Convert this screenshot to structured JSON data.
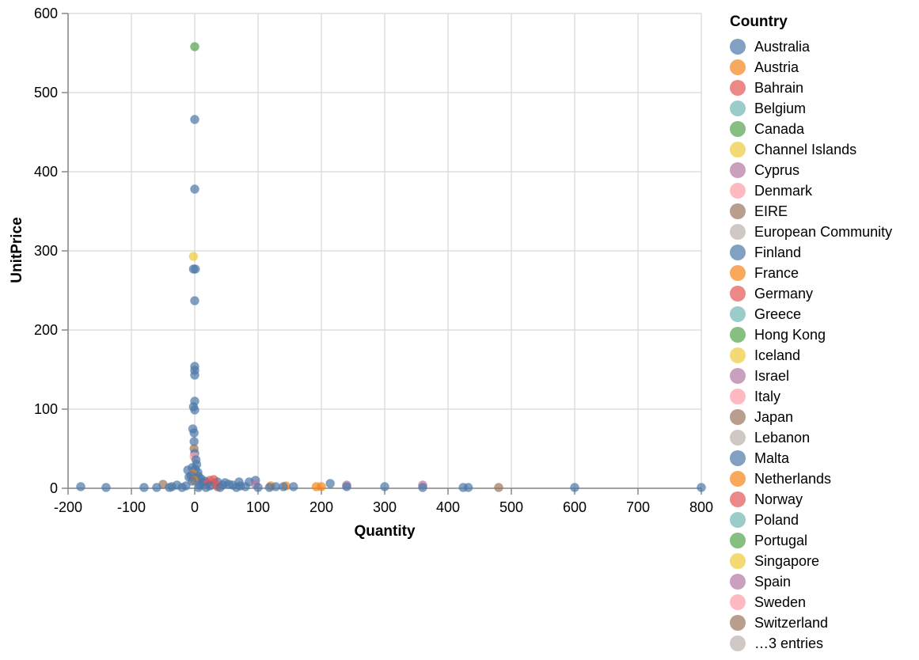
{
  "chart_data": {
    "type": "scatter",
    "xlabel": "Quantity",
    "ylabel": "UnitPrice",
    "xlim": [
      -200,
      800
    ],
    "ylim": [
      0,
      600
    ],
    "xticks": [
      "-200",
      "-100",
      "0",
      "100",
      "200",
      "300",
      "400",
      "500",
      "600",
      "700",
      "800"
    ],
    "yticks": [
      "0",
      "100",
      "200",
      "300",
      "400",
      "500",
      "600"
    ],
    "grid": true,
    "legend": {
      "title": "Country",
      "placement": "right",
      "entries": [
        {
          "name": "Australia",
          "color": "#4c78a8"
        },
        {
          "name": "Austria",
          "color": "#f58518"
        },
        {
          "name": "Bahrain",
          "color": "#e45756"
        },
        {
          "name": "Belgium",
          "color": "#72b7b2"
        },
        {
          "name": "Canada",
          "color": "#54a24b"
        },
        {
          "name": "Channel Islands",
          "color": "#eeca3b"
        },
        {
          "name": "Cyprus",
          "color": "#b279a2"
        },
        {
          "name": "Denmark",
          "color": "#ff9da6"
        },
        {
          "name": "EIRE",
          "color": "#9d755d"
        },
        {
          "name": "European Community",
          "color": "#bab0ac"
        },
        {
          "name": "Finland",
          "color": "#4c78a8"
        },
        {
          "name": "France",
          "color": "#f58518"
        },
        {
          "name": "Germany",
          "color": "#e45756"
        },
        {
          "name": "Greece",
          "color": "#72b7b2"
        },
        {
          "name": "Hong Kong",
          "color": "#54a24b"
        },
        {
          "name": "Iceland",
          "color": "#eeca3b"
        },
        {
          "name": "Israel",
          "color": "#b279a2"
        },
        {
          "name": "Italy",
          "color": "#ff9da6"
        },
        {
          "name": "Japan",
          "color": "#9d755d"
        },
        {
          "name": "Lebanon",
          "color": "#bab0ac"
        },
        {
          "name": "Malta",
          "color": "#4c78a8"
        },
        {
          "name": "Netherlands",
          "color": "#f58518"
        },
        {
          "name": "Norway",
          "color": "#e45756"
        },
        {
          "name": "Poland",
          "color": "#72b7b2"
        },
        {
          "name": "Portugal",
          "color": "#54a24b"
        },
        {
          "name": "Singapore",
          "color": "#eeca3b"
        },
        {
          "name": "Spain",
          "color": "#b279a2"
        },
        {
          "name": "Sweden",
          "color": "#ff9da6"
        },
        {
          "name": "Switzerland",
          "color": "#9d755d"
        },
        {
          "name": "…3 entries",
          "color": "#bab0ac"
        }
      ]
    },
    "points": [
      {
        "x": 0,
        "y": 558,
        "c": 4
      },
      {
        "x": 0,
        "y": 466,
        "c": 0
      },
      {
        "x": 0,
        "y": 378,
        "c": 0
      },
      {
        "x": -2,
        "y": 293,
        "c": 5
      },
      {
        "x": -2,
        "y": 277,
        "c": 0
      },
      {
        "x": 1,
        "y": 277,
        "c": 0
      },
      {
        "x": 0,
        "y": 237,
        "c": 0
      },
      {
        "x": 0,
        "y": 154,
        "c": 0
      },
      {
        "x": 0,
        "y": 149,
        "c": 0
      },
      {
        "x": 0,
        "y": 143,
        "c": 0
      },
      {
        "x": 0,
        "y": 110,
        "c": 0
      },
      {
        "x": -2,
        "y": 103,
        "c": 0
      },
      {
        "x": 0,
        "y": 99,
        "c": 0
      },
      {
        "x": -3,
        "y": 75,
        "c": 0
      },
      {
        "x": -1,
        "y": 70,
        "c": 0
      },
      {
        "x": -1,
        "y": 59,
        "c": 0
      },
      {
        "x": -1,
        "y": 50,
        "c": 8
      },
      {
        "x": 0,
        "y": 44,
        "c": 0
      },
      {
        "x": -1,
        "y": 40,
        "c": 7
      },
      {
        "x": 2,
        "y": 36,
        "c": 0
      },
      {
        "x": 3,
        "y": 30,
        "c": 0
      },
      {
        "x": -4,
        "y": 26,
        "c": 0
      },
      {
        "x": 1,
        "y": 24,
        "c": 0
      },
      {
        "x": -11,
        "y": 23,
        "c": 0
      },
      {
        "x": 5,
        "y": 20,
        "c": 0
      },
      {
        "x": -3,
        "y": 18,
        "c": 11
      },
      {
        "x": -6,
        "y": 16,
        "c": 0
      },
      {
        "x": 6,
        "y": 15,
        "c": 0
      },
      {
        "x": -9,
        "y": 14,
        "c": 0
      },
      {
        "x": 2,
        "y": 13,
        "c": 0
      },
      {
        "x": 10,
        "y": 12,
        "c": 0
      },
      {
        "x": 30,
        "y": 11,
        "c": 2
      },
      {
        "x": 24,
        "y": 10,
        "c": 2
      },
      {
        "x": -1,
        "y": 10,
        "c": 11
      },
      {
        "x": 96,
        "y": 10,
        "c": 0
      },
      {
        "x": 16,
        "y": 9,
        "c": 0
      },
      {
        "x": -4,
        "y": 9,
        "c": 0
      },
      {
        "x": 70,
        "y": 8,
        "c": 0
      },
      {
        "x": 86,
        "y": 8,
        "c": 0
      },
      {
        "x": 36,
        "y": 8,
        "c": 0
      },
      {
        "x": 48,
        "y": 7,
        "c": 0
      },
      {
        "x": 214,
        "y": 6,
        "c": 0
      },
      {
        "x": 12,
        "y": 7,
        "c": 0
      },
      {
        "x": 20,
        "y": 6,
        "c": 2
      },
      {
        "x": 32,
        "y": 6,
        "c": 2
      },
      {
        "x": -50,
        "y": 5,
        "c": 8
      },
      {
        "x": 54,
        "y": 5,
        "c": 0
      },
      {
        "x": 96,
        "y": 5,
        "c": 6
      },
      {
        "x": 240,
        "y": 4,
        "c": 6
      },
      {
        "x": 360,
        "y": 4,
        "c": 6
      },
      {
        "x": 60,
        "y": 4,
        "c": 0
      },
      {
        "x": 44,
        "y": 4,
        "c": 0
      },
      {
        "x": -28,
        "y": 4,
        "c": 0
      },
      {
        "x": 8,
        "y": 4,
        "c": 0
      },
      {
        "x": -14,
        "y": 3,
        "c": 0
      },
      {
        "x": 120,
        "y": 3,
        "c": 1
      },
      {
        "x": 144,
        "y": 3,
        "c": 1
      },
      {
        "x": 192,
        "y": 2,
        "c": 1
      },
      {
        "x": 200,
        "y": 2,
        "c": 1
      },
      {
        "x": 24,
        "y": 3,
        "c": 0
      },
      {
        "x": 72,
        "y": 3,
        "c": 0
      },
      {
        "x": 80,
        "y": 2,
        "c": 0
      },
      {
        "x": -36,
        "y": 2,
        "c": 0
      },
      {
        "x": 36,
        "y": 2,
        "c": 2
      },
      {
        "x": 128,
        "y": 2,
        "c": 0
      },
      {
        "x": 156,
        "y": 2,
        "c": 0
      },
      {
        "x": 140,
        "y": 2,
        "c": 0
      },
      {
        "x": 240,
        "y": 2,
        "c": 0
      },
      {
        "x": 300,
        "y": 2,
        "c": 0
      },
      {
        "x": 480,
        "y": 1,
        "c": 8
      },
      {
        "x": -180,
        "y": 2,
        "c": 0
      },
      {
        "x": -140,
        "y": 1,
        "c": 0
      },
      {
        "x": -80,
        "y": 1,
        "c": 0
      },
      {
        "x": -60,
        "y": 1,
        "c": 0
      },
      {
        "x": -40,
        "y": 1,
        "c": 0
      },
      {
        "x": -20,
        "y": 1,
        "c": 0
      },
      {
        "x": 18,
        "y": 1,
        "c": 0
      },
      {
        "x": 100,
        "y": 1,
        "c": 0
      },
      {
        "x": 118,
        "y": 1,
        "c": 0
      },
      {
        "x": 360,
        "y": 1,
        "c": 0
      },
      {
        "x": 424,
        "y": 1,
        "c": 0
      },
      {
        "x": 432,
        "y": 1,
        "c": 0
      },
      {
        "x": 600,
        "y": 1,
        "c": 0
      },
      {
        "x": 800,
        "y": 1,
        "c": 0
      },
      {
        "x": 40,
        "y": 1,
        "c": 0
      },
      {
        "x": 66,
        "y": 1,
        "c": 0
      },
      {
        "x": 6,
        "y": 1,
        "c": 0
      }
    ]
  }
}
